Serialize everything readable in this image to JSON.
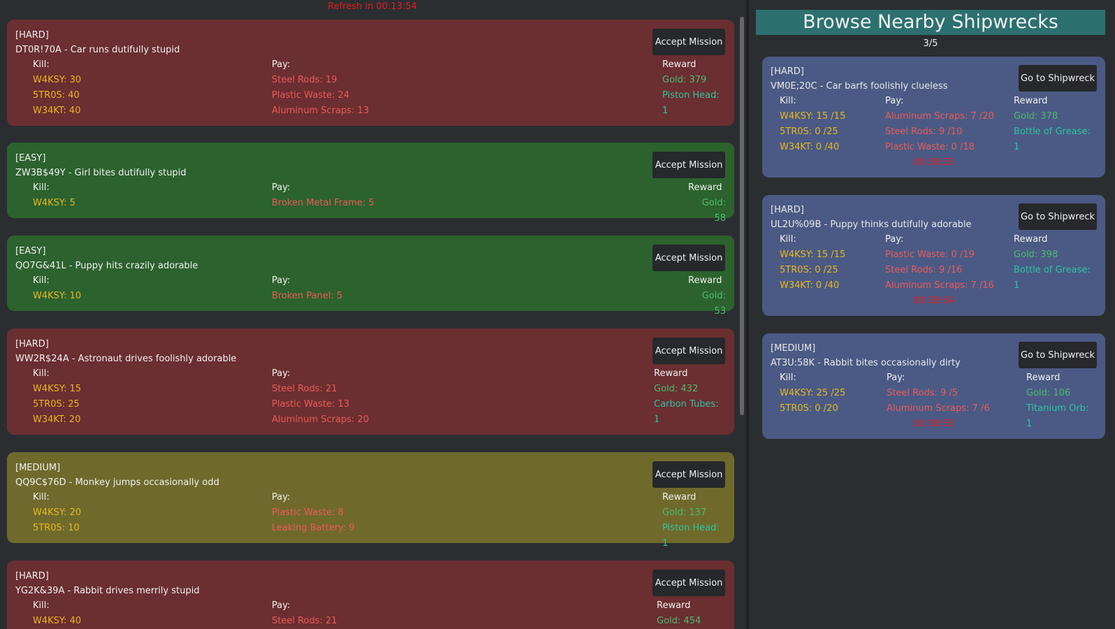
{
  "refresh_text": "Refresh in 00:13:54",
  "accept_label": "Accept Mission",
  "missions": [
    {
      "difficulty": "[HARD]",
      "title": "DT0R!70A - Car runs dutifully stupid",
      "kill_label": "Kill:",
      "pay_label": "Pay:",
      "reward_label": "Reward",
      "kill": [
        "W4KSY: 30",
        "5TR0S: 40",
        "W34KT: 40"
      ],
      "pay": [
        "Steel Rods: 19",
        "Plastic Waste: 24",
        "Aluminum Scraps: 13"
      ],
      "reward": [
        "Gold: 379",
        "Piston Head: 1"
      ]
    },
    {
      "difficulty": "[EASY]",
      "title": "ZW3B$49Y - Girl bites dutifully stupid",
      "kill_label": "Kill:",
      "pay_label": "Pay:",
      "reward_label": "Reward",
      "kill": [
        "W4KSY: 5"
      ],
      "pay": [
        "Broken Metal Frame: 5"
      ],
      "reward": [
        "Gold: 58"
      ]
    },
    {
      "difficulty": "[EASY]",
      "title": "QO7G&41L - Puppy hits crazily adorable",
      "kill_label": "Kill:",
      "pay_label": "Pay:",
      "reward_label": "Reward",
      "kill": [
        "W4KSY: 10"
      ],
      "pay": [
        "Broken Panel: 5"
      ],
      "reward": [
        "Gold: 53"
      ]
    },
    {
      "difficulty": "[HARD]",
      "title": "WW2R$24A - Astronaut drives foolishly adorable",
      "kill_label": "Kill:",
      "pay_label": "Pay:",
      "reward_label": "Reward",
      "kill": [
        "W4KSY: 15",
        "5TR0S: 25",
        "W34KT: 20"
      ],
      "pay": [
        "Steel Rods: 21",
        "Plastic Waste: 13",
        "Aluminum Scraps: 20"
      ],
      "reward": [
        "Gold: 432",
        "Carbon Tubes: 1"
      ]
    },
    {
      "difficulty": "[MEDIUM]",
      "title": "QQ9C$76D - Monkey jumps occasionally odd",
      "kill_label": "Kill:",
      "pay_label": "Pay:",
      "reward_label": "Reward",
      "kill": [
        "W4KSY: 20",
        "5TR0S: 10"
      ],
      "pay": [
        "Plastic Waste: 8",
        "Leaking Battery: 9"
      ],
      "reward": [
        "Gold: 137",
        "Piston Head: 1"
      ]
    },
    {
      "difficulty": "[HARD]",
      "title": "YG2K&39A - Rabbit drives merrily stupid",
      "kill_label": "Kill:",
      "pay_label": "Pay:",
      "reward_label": "Reward",
      "kill": [
        "W4KSY: 40"
      ],
      "pay": [
        "Steel Rods: 21"
      ],
      "reward": [
        "Gold: 454"
      ]
    }
  ],
  "shipwrecks_panel": {
    "title": "Browse Nearby Shipwrecks",
    "page": "3/5",
    "goto_label": "Go to Shipwreck",
    "wrecks": [
      {
        "difficulty": "[HARD]",
        "title": "VM0E;20C - Car barfs foolishly clueless",
        "kill_label": "Kill:",
        "pay_label": "Pay:",
        "reward_label": "Reward",
        "kill": [
          "W4KSY: 15 /15",
          "5TR0S: 0 /25",
          "W34KT: 0 /40"
        ],
        "pay": [
          "Aluminum Scraps: 7 /20",
          "Steel Rods: 9 /10",
          "Plastic Waste: 0 /18"
        ],
        "reward": [
          "Gold: 378",
          "Bottle of Grease: 1"
        ],
        "timer": "00:38:53"
      },
      {
        "difficulty": "[HARD]",
        "title": "UL2U%09B - Puppy thinks dutifully adorable",
        "kill_label": "Kill:",
        "pay_label": "Pay:",
        "reward_label": "Reward",
        "kill": [
          "W4KSY: 15 /15",
          "5TR0S: 0 /25",
          "W34KT: 0 /40"
        ],
        "pay": [
          "Plastic Waste: 0 /19",
          "Steel Rods: 9 /16",
          "Aluminum Scraps: 7 /16"
        ],
        "reward": [
          "Gold: 398",
          "Bottle of Grease: 1"
        ],
        "timer": "00:38:54"
      },
      {
        "difficulty": "[MEDIUM]",
        "title": "AT3U:58K - Rabbit bites occasionally dirty",
        "kill_label": "Kill:",
        "pay_label": "Pay:",
        "reward_label": "Reward",
        "kill": [
          "W4KSY: 25 /25",
          "5TR0S: 0 /20"
        ],
        "pay": [
          "Steel Rods: 9 /5",
          "Aluminum Scraps: 7 /6"
        ],
        "reward": [
          "Gold: 106",
          "Titanium Orb: 1"
        ],
        "timer": "00:38:55"
      }
    ]
  },
  "colors": {
    "hard": "#6b2e31",
    "easy": "#2c622e",
    "medium": "#6f6a2c",
    "shipwreck": "#4a5a84",
    "title_bar": "#2c7070"
  }
}
